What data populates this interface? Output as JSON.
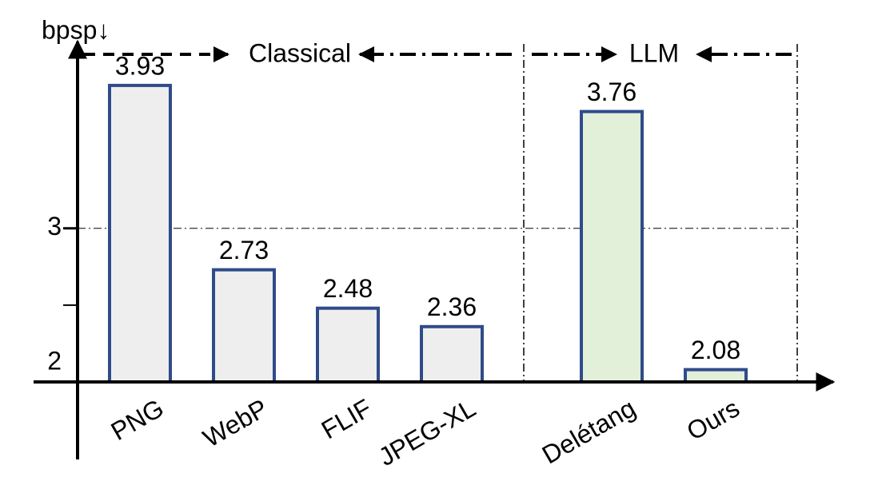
{
  "chart_data": {
    "type": "bar",
    "y_label": "bpsp↓",
    "categories": [
      "PNG",
      "WebP",
      "FLIF",
      "JPEG-XL",
      "Delétang",
      "Ours"
    ],
    "series": [
      {
        "name": "Classical",
        "color": "#eeeeee",
        "values": [
          3.93,
          2.73,
          2.48,
          2.36,
          null,
          null
        ]
      },
      {
        "name": "LLM",
        "color": "#e2efd9",
        "values": [
          null,
          null,
          null,
          null,
          3.76,
          2.08
        ]
      }
    ],
    "edge_color": "#2f4b8a",
    "ylim": [
      2,
      4.2
    ],
    "yticks": [
      2,
      3
    ],
    "minor_yticks": [
      2.5
    ],
    "grid": true
  }
}
